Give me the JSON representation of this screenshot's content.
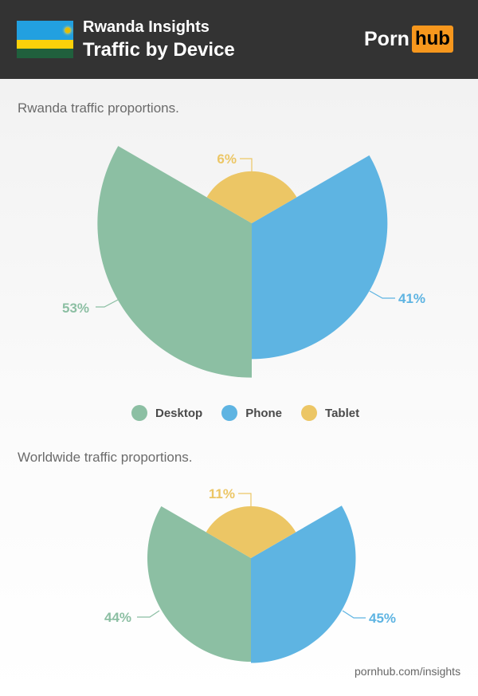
{
  "header": {
    "title_line1": "Rwanda Insights",
    "title_line2": "Traffic by Device",
    "logo_part1": "Porn",
    "logo_part2": "hub",
    "flag": "Rwanda flag"
  },
  "sections": [
    {
      "title": "Rwanda traffic proportions."
    },
    {
      "title": "Worldwide traffic proportions."
    }
  ],
  "legend": [
    {
      "label": "Desktop",
      "color": "#8cbfa3"
    },
    {
      "label": "Phone",
      "color": "#5eb4e2"
    },
    {
      "label": "Tablet",
      "color": "#ecc665"
    }
  ],
  "footer": {
    "text": "pornhub.com/insights"
  },
  "chart_data": [
    {
      "type": "polar-area",
      "title": "Rwanda traffic proportions.",
      "categories": [
        "Desktop",
        "Phone",
        "Tablet"
      ],
      "values": [
        53,
        41,
        6
      ],
      "labels": [
        "53%",
        "41%",
        "6%"
      ],
      "colors": [
        "#8cbfa3",
        "#5eb4e2",
        "#ecc665"
      ],
      "legend_position": "bottom"
    },
    {
      "type": "polar-area",
      "title": "Worldwide traffic proportions.",
      "categories": [
        "Desktop",
        "Phone",
        "Tablet"
      ],
      "values": [
        44,
        45,
        11
      ],
      "labels": [
        "44%",
        "45%",
        "11%"
      ],
      "colors": [
        "#8cbfa3",
        "#5eb4e2",
        "#ecc665"
      ]
    }
  ]
}
